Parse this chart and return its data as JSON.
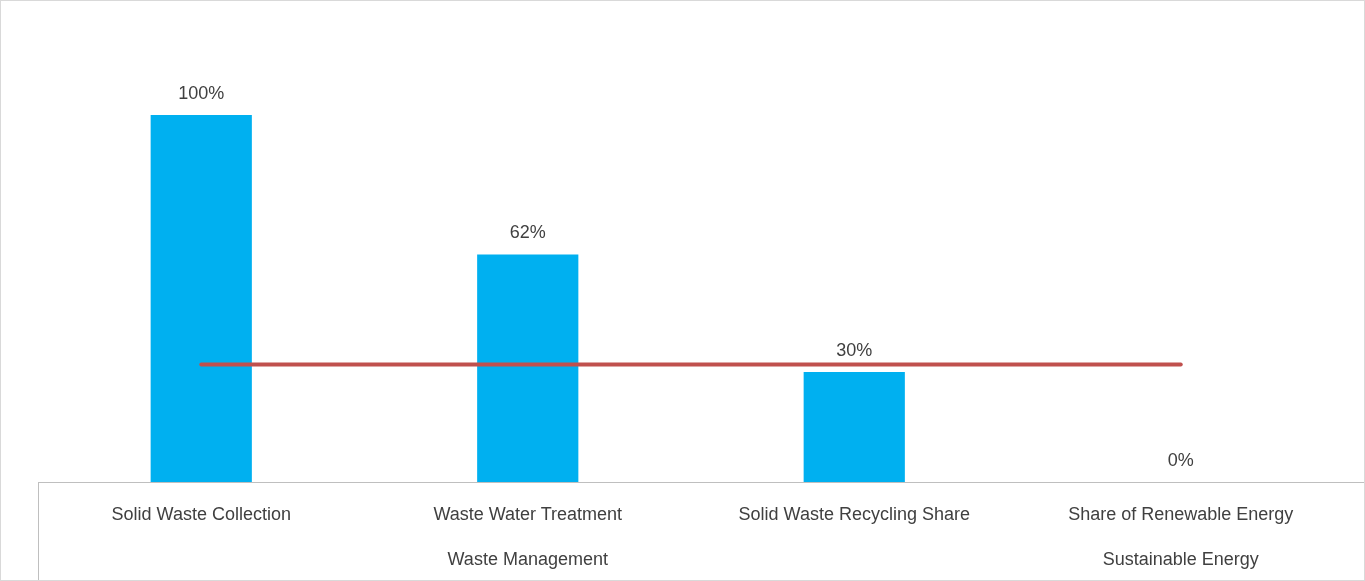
{
  "chart_data": {
    "type": "bar",
    "categories": [
      "Solid Waste Collection",
      "Waste Water Treatment",
      "Solid Waste Recycling Share",
      "Share of Renewable Energy"
    ],
    "series": [
      {
        "color": "#00b0f0",
        "values": [
          100,
          62,
          30,
          0
        ],
        "value_labels": [
          "100%",
          "62%",
          "30%",
          "0%"
        ]
      },
      {
        "type": "line",
        "color": "#c0504d",
        "values": [
          32,
          32,
          32,
          32
        ]
      }
    ],
    "ylim": [
      0,
      100
    ],
    "annotations": [
      "Waste Management",
      "Sustainable Energy"
    ],
    "marker": "none",
    "line_style": "solid",
    "grid": false,
    "legend": false,
    "tick_labels": "x"
  }
}
